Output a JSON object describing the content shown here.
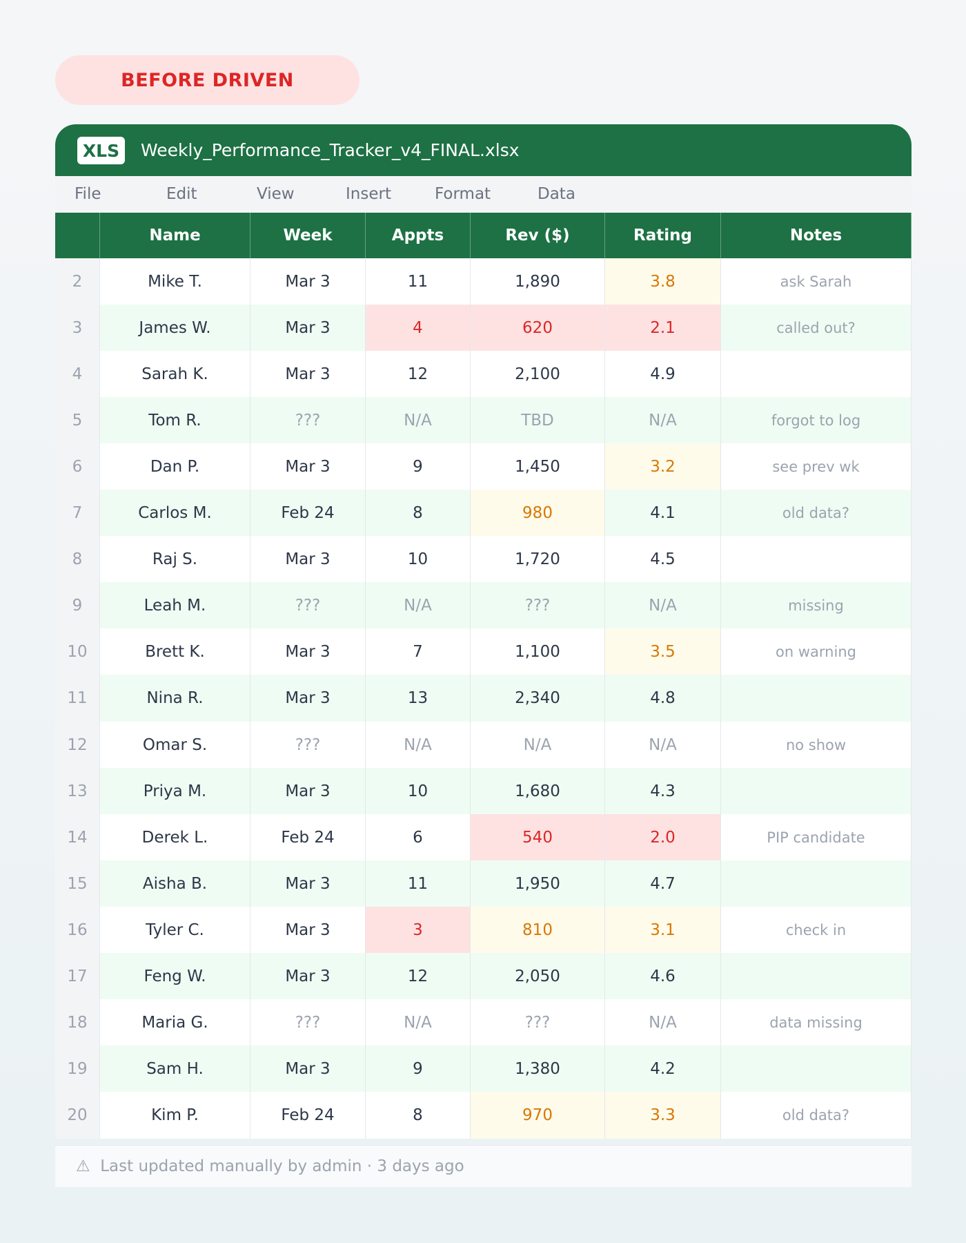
{
  "badge": "BEFORE DRIVEN",
  "file": {
    "icon": "XLS",
    "name": "Weekly_Performance_Tracker_v4_FINAL.xlsx"
  },
  "menu": [
    "File",
    "Edit",
    "View",
    "Insert",
    "Format",
    "Data"
  ],
  "table": {
    "columns": [
      "Name",
      "Week",
      "Appts",
      "Rev ($)",
      "Rating",
      "Notes"
    ],
    "rows": [
      [
        "2",
        "Mike T.",
        "Mar 3",
        "11",
        "1,890",
        "3.8",
        "ask Sarah"
      ],
      [
        "3",
        "James W.",
        "Mar 3",
        "4",
        "620",
        "2.1",
        "called out?"
      ],
      [
        "4",
        "Sarah K.",
        "Mar 3",
        "12",
        "2,100",
        "4.9",
        null
      ],
      [
        "5",
        "Tom R.",
        "???",
        "N/A",
        "TBD",
        "N/A",
        "forgot to log"
      ],
      [
        "6",
        "Dan P.",
        "Mar 3",
        "9",
        "1,450",
        "3.2",
        "see prev wk"
      ],
      [
        "7",
        "Carlos M.",
        "Feb 24",
        "8",
        "980",
        "4.1",
        "old data?"
      ],
      [
        "8",
        "Raj S.",
        "Mar 3",
        "10",
        "1,720",
        "4.5",
        null
      ],
      [
        "9",
        "Leah M.",
        "???",
        "N/A",
        "???",
        "N/A",
        "missing"
      ],
      [
        "10",
        "Brett K.",
        "Mar 3",
        "7",
        "1,100",
        "3.5",
        "on warning"
      ],
      [
        "11",
        "Nina R.",
        "Mar 3",
        "13",
        "2,340",
        "4.8",
        null
      ],
      [
        "12",
        "Omar S.",
        "???",
        "N/A",
        "N/A",
        "N/A",
        "no show"
      ],
      [
        "13",
        "Priya M.",
        "Mar 3",
        "10",
        "1,680",
        "4.3",
        null
      ],
      [
        "14",
        "Derek L.",
        "Feb 24",
        "6",
        "540",
        "2.0",
        "PIP candidate"
      ],
      [
        "15",
        "Aisha B.",
        "Mar 3",
        "11",
        "1,950",
        "4.7",
        null
      ],
      [
        "16",
        "Tyler C.",
        "Mar 3",
        "3",
        "810",
        "3.1",
        "check in"
      ],
      [
        "17",
        "Feng W.",
        "Mar 3",
        "12",
        "2,050",
        "4.6",
        null
      ],
      [
        "18",
        "Maria G.",
        "???",
        "N/A",
        "???",
        "N/A",
        "data missing"
      ],
      [
        "19",
        "Sam H.",
        "Mar 3",
        "9",
        "1,380",
        "4.2",
        null
      ],
      [
        "20",
        "Kim P.",
        "Feb 24",
        "8",
        "970",
        "3.3",
        "old data?"
      ]
    ]
  },
  "footer": "⚠  Last updated manually by admin · 3 days ago"
}
